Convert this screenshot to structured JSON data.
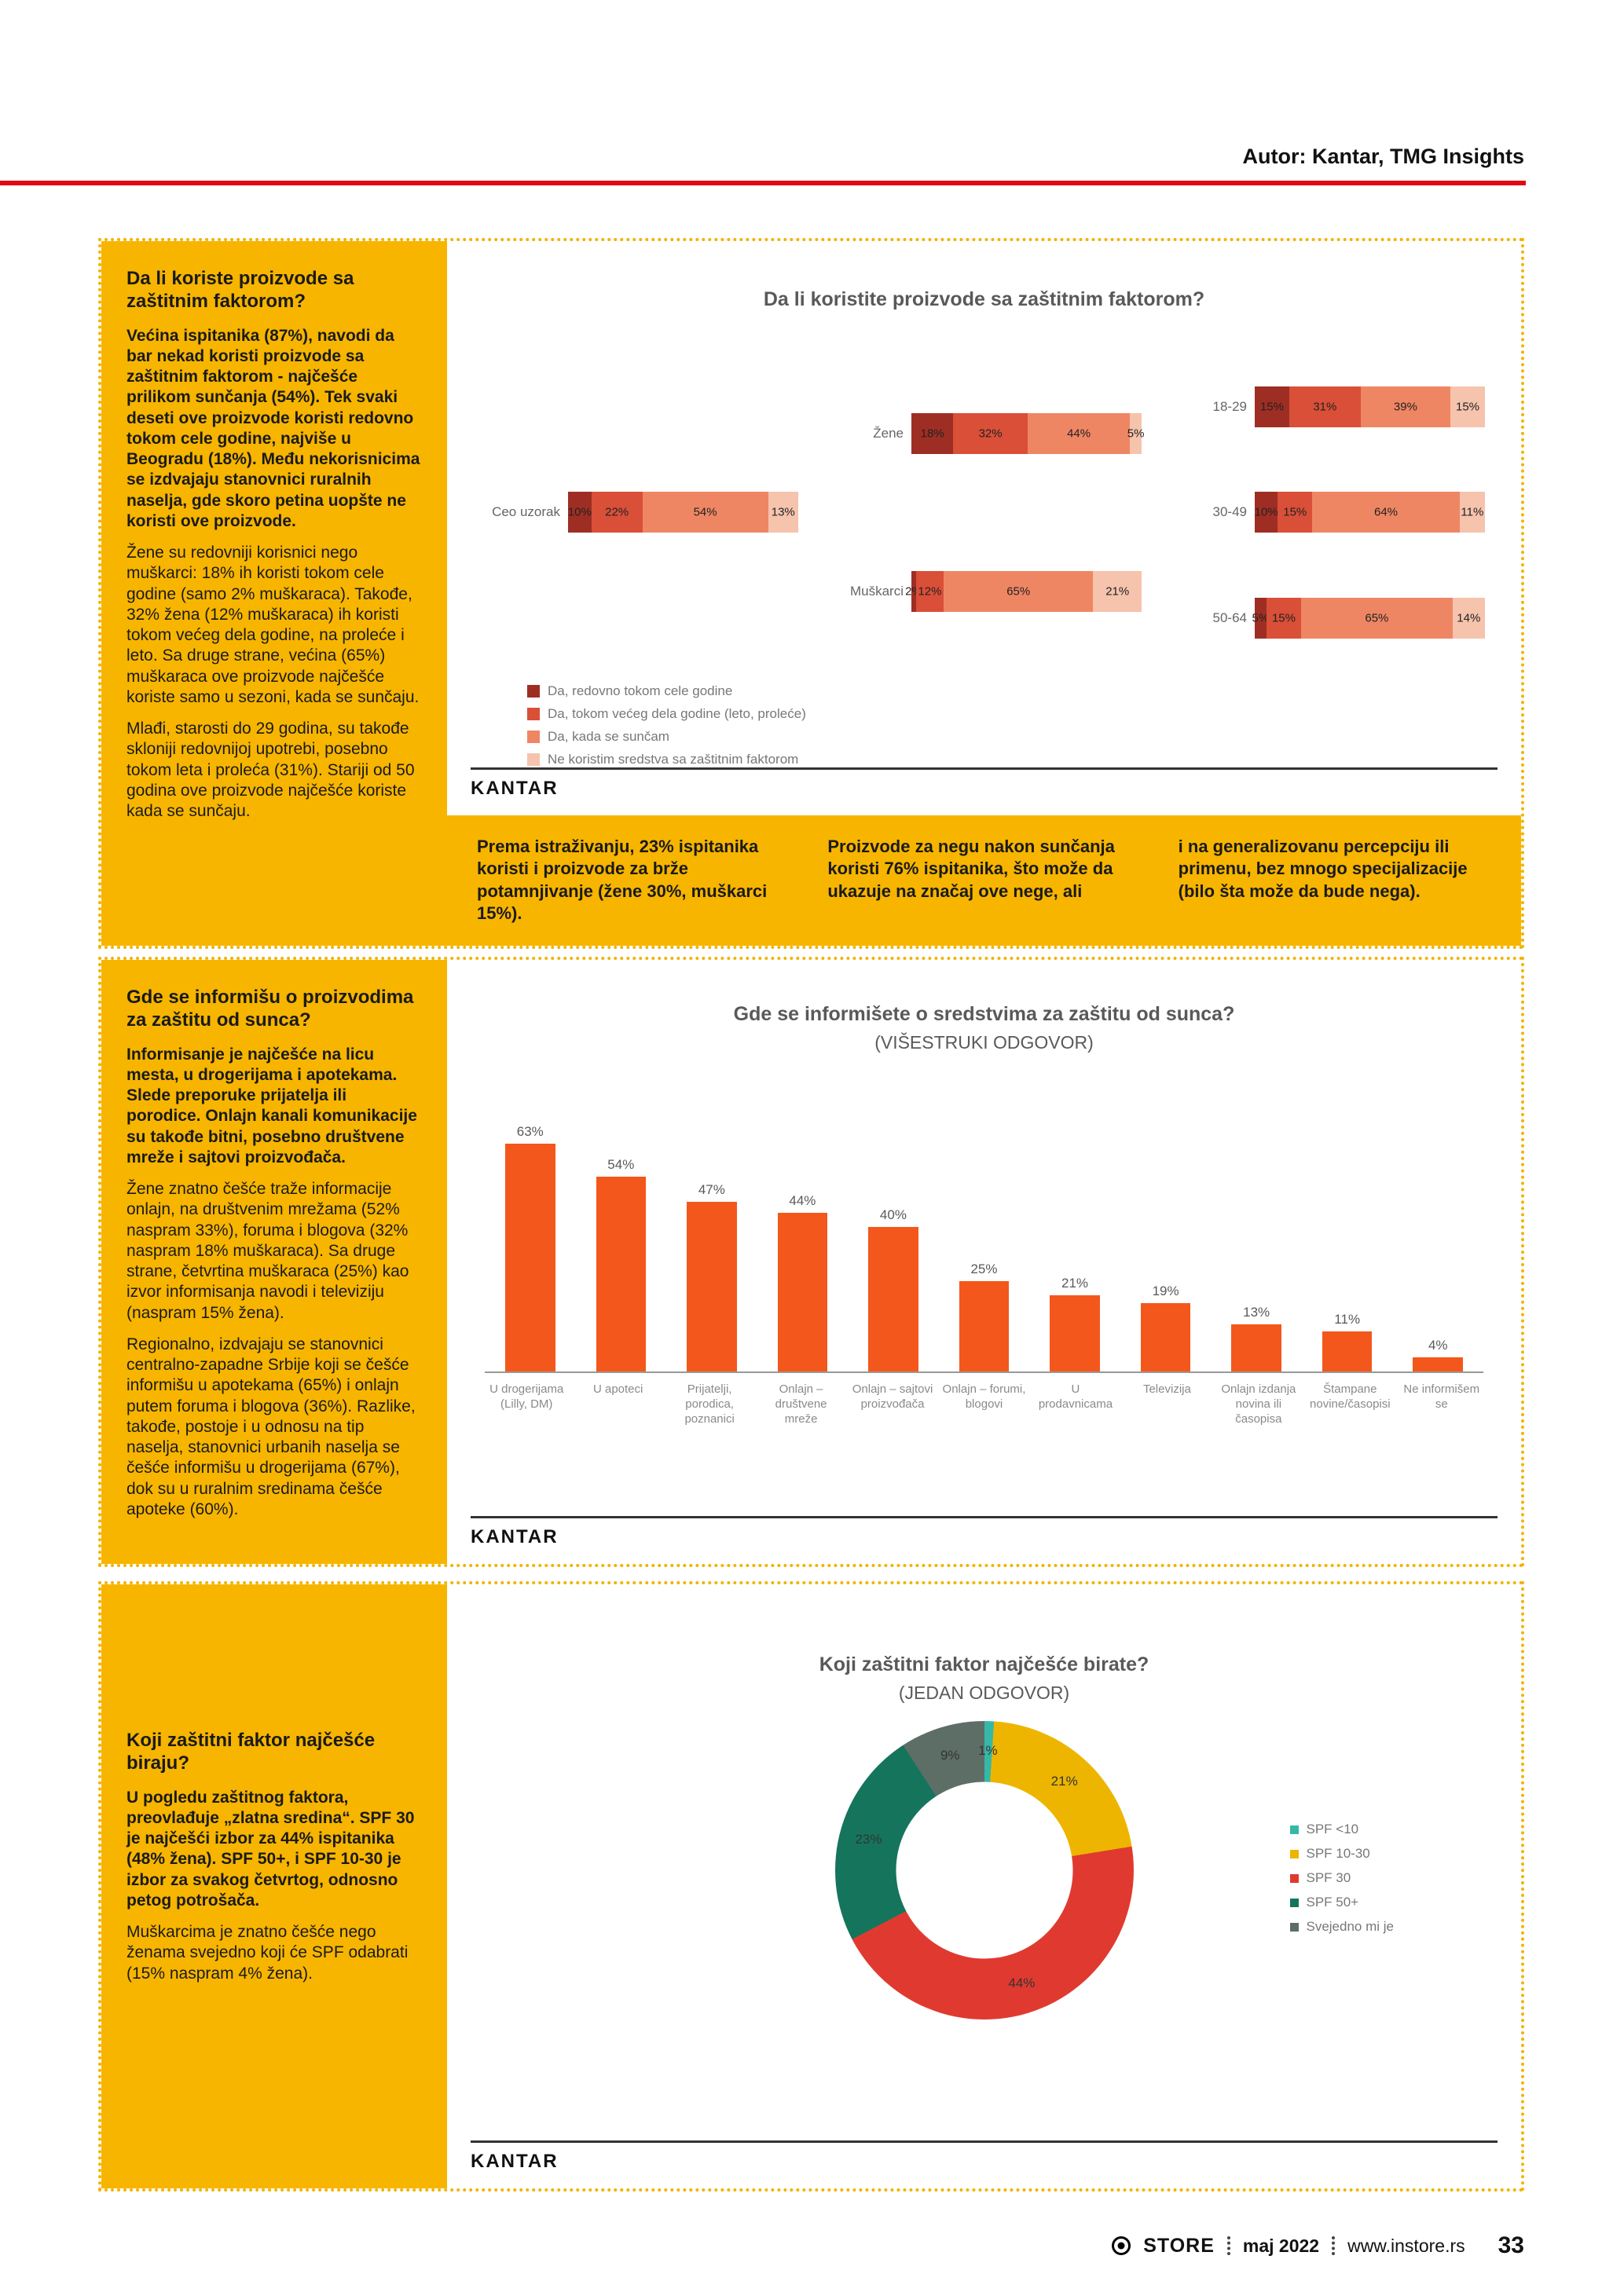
{
  "page": {
    "author": "Autor: Kantar, TMG Insights",
    "kantar_logo": "KANTAR",
    "footer": {
      "brand": "STORE",
      "issue": "maj 2022",
      "website": "www.instore.rs",
      "page_number": "33"
    },
    "colors": {
      "accent_yellow": "#f7b500",
      "header_red": "#e30613",
      "bar_orange": "#f4571c"
    }
  },
  "section_usage": {
    "heading": "Da li koriste proizvode sa zaštitnim faktorom?",
    "paragraphs": [
      "Većina ispitanika (87%), navodi da bar nekad koristi proizvode sa zaštitnim faktorom - najčešće prilikom sunčanja (54%). Tek svaki deseti ove proizvode koristi redovno tokom cele godine, najviše u Beogradu (18%). Među nekorisnicima se izdvajaju stanovnici ruralnih naselja, gde skoro petina uopšte ne koristi ove proizvode.",
      "Žene su redovniji korisnici nego muškarci: 18% ih koristi tokom cele godine (samo 2% muškaraca). Takođe, 32% žena (12% muškaraca) ih koristi tokom većeg dela godine, na proleće i leto. Sa druge strane, većina (65%) muškaraca ove proizvode najčešće koriste samo u sezoni, kada se sunčaju.",
      "Mlađi, starosti do 29 godina, su takođe skloniji redovnijoj upotrebi, posebno tokom leta i proleća (31%). Stariji od 50 godina ove proizvode najčešće koriste kada se sunčaju."
    ],
    "banner": [
      "Prema istraživanju, 23% ispitanika koristi i proizvode za brže potamnjivanje (žene 30%, muškarci 15%).",
      "Proizvode za negu nakon sunčanja koristi 76% ispitanika, što može da ukazuje na značaj ove nege, ali",
      "i na generalizovanu percepciju ili primenu, bez mnogo specijalizacije (bilo šta može da bude nega)."
    ]
  },
  "section_info": {
    "heading": "Gde se informišu o proizvodima za zaštitu od sunca?",
    "paragraphs": [
      "Informisanje je najčešće na licu mesta, u drogerijama i apotekama. Slede preporuke prijatelja ili porodice. Onlajn kanali komunikacije su takođe bitni, posebno društvene mreže i sajtovi proizvođača.",
      "Žene znatno češće traže informacije onlajn, na društvenim mrežama (52% naspram 33%), foruma i blogova (32% naspram 18% muškaraca). Sa druge strane, četvrtina muškaraca (25%) kao izvor informisanja navodi i televiziju (naspram 15% žena).",
      "Regionalno, izdvajaju se stanovnici centralno-zapadne Srbije koji se češće informišu u apotekama (65%) i onlajn putem foruma i blogova (36%). Razlike, takođe, postoje i u odnosu na tip naselja, stanovnici urbanih naselja se češće informišu u drogerijama (67%), dok su u ruralnim sredinama češće apoteke (60%)."
    ]
  },
  "section_spf": {
    "heading": "Koji zaštitni faktor najčešće biraju?",
    "paragraphs": [
      "U pogledu zaštitnog faktora, preovlađuje „zlatna sredina“. SPF 30 je najčešći izbor za 44% ispitanika (48% žena). SPF 50+, i SPF 10-30 je izbor za svakog četvrtog, odnosno petog potrošača.",
      "Muškarcima je znatno češće nego ženama svejedno koji će SPF odabrati (15% naspram 4% žena)."
    ]
  },
  "chart_data": [
    {
      "type": "bar",
      "variant": "horizontal-stacked",
      "title": "Da li koristite proizvode sa zaštitnim faktorom?",
      "unit": "%",
      "legend": [
        {
          "label": "Da, redovno tokom cele godine",
          "color": "#9e2e23"
        },
        {
          "label": "Da, tokom većeg dela godine (leto, proleće)",
          "color": "#d94f38"
        },
        {
          "label": "Da, kada se sunčam",
          "color": "#ef8663"
        },
        {
          "label": "Ne koristim sredstva sa zaštitnim faktorom",
          "color": "#f6c3ad"
        }
      ],
      "panels": [
        {
          "rows": [
            {
              "label": "Ceo uzorak",
              "values": [
                10,
                22,
                54,
                13
              ]
            }
          ]
        },
        {
          "rows": [
            {
              "label": "Žene",
              "values": [
                18,
                32,
                44,
                5
              ]
            },
            {
              "label": "Muškarci",
              "values": [
                2,
                12,
                65,
                21
              ]
            }
          ]
        },
        {
          "rows": [
            {
              "label": "18-29",
              "values": [
                15,
                31,
                39,
                15
              ]
            },
            {
              "label": "30-49",
              "values": [
                10,
                15,
                64,
                11
              ]
            },
            {
              "label": "50-64",
              "values": [
                5,
                15,
                65,
                14
              ]
            }
          ]
        }
      ],
      "legend_position": "bottom-left"
    },
    {
      "type": "bar",
      "title": "Gde se informišete o sredstvima za zaštitu od sunca?",
      "subtitle": "(VIŠESTRUKI ODGOVOR)",
      "bar_color": "#f4571c",
      "unit": "%",
      "categories": [
        "U drogerijama (Lilly, DM)",
        "U apoteci",
        "Prijatelji, porodica, poznanici",
        "Onlajn – društvene mreže",
        "Onlajn – sajtovi proizvođača",
        "Onlajn – forumi, blogovi",
        "U prodavnicama",
        "Televizija",
        "Onlajn izdanja novina ili časopisa",
        "Štampane novine/časopisi",
        "Ne informišem se"
      ],
      "values": [
        63,
        54,
        47,
        44,
        40,
        25,
        21,
        19,
        13,
        11,
        4
      ],
      "ylim": [
        0,
        70
      ],
      "grid": false
    },
    {
      "type": "pie",
      "variant": "donut",
      "title": "Koji zaštitni faktor najčešće birate?",
      "subtitle": "(JEDAN ODGOVOR)",
      "unit": "%",
      "slices": [
        {
          "label": "SPF <10",
          "value": 1,
          "color": "#35b8a8"
        },
        {
          "label": "SPF 10-30",
          "value": 21,
          "color": "#edb500"
        },
        {
          "label": "SPF 30",
          "value": 44,
          "color": "#e03a30"
        },
        {
          "label": "SPF 50+",
          "value": 23,
          "color": "#15755c"
        },
        {
          "label": "Svejedno mi je",
          "value": 9,
          "color": "#5d6e66"
        }
      ],
      "legend_position": "right"
    }
  ]
}
